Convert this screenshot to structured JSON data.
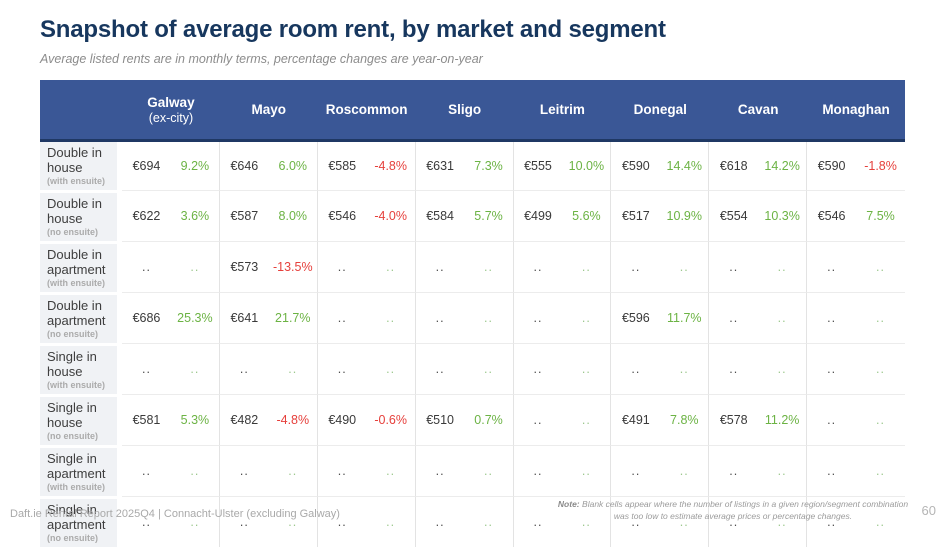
{
  "page": {
    "title": "Snapshot of average room rent, by market and segment",
    "subtitle": "Average listed rents are in monthly terms, percentage changes are year-on-year",
    "footer_left": "Daft.ie Rental Report 2025Q4 | Connacht-Ulster (excluding Galway)",
    "note_label": "Note:",
    "note_text": "Blank cells appear where the number of listings in a given region/segment combination was too low to estimate average prices or percentage changes.",
    "page_number": "60"
  },
  "colors": {
    "title": "#17375E",
    "header_bg": "#3A5796",
    "header_underline": "#1F3864",
    "positive": "#6CB344",
    "negative": "#E6403C",
    "blank_pct": "#9CC88D",
    "blank_val": "#4D4D4D"
  },
  "table": {
    "markets": [
      {
        "name": "Galway",
        "sub": "(ex-city)"
      },
      {
        "name": "Mayo",
        "sub": ""
      },
      {
        "name": "Roscommon",
        "sub": ""
      },
      {
        "name": "Sligo",
        "sub": ""
      },
      {
        "name": "Leitrim",
        "sub": ""
      },
      {
        "name": "Donegal",
        "sub": ""
      },
      {
        "name": "Cavan",
        "sub": ""
      },
      {
        "name": "Monaghan",
        "sub": ""
      }
    ],
    "rows": [
      {
        "label": "Double in house",
        "sublabel": "(with ensuite)",
        "cells": [
          {
            "rent": "€694",
            "change": "9.2%"
          },
          {
            "rent": "€646",
            "change": "6.0%"
          },
          {
            "rent": "€585",
            "change": "-4.8%"
          },
          {
            "rent": "€631",
            "change": "7.3%"
          },
          {
            "rent": "€555",
            "change": "10.0%"
          },
          {
            "rent": "€590",
            "change": "14.4%"
          },
          {
            "rent": "€618",
            "change": "14.2%"
          },
          {
            "rent": "€590",
            "change": "-1.8%"
          }
        ]
      },
      {
        "label": "Double in house",
        "sublabel": "(no ensuite)",
        "cells": [
          {
            "rent": "€622",
            "change": "3.6%"
          },
          {
            "rent": "€587",
            "change": "8.0%"
          },
          {
            "rent": "€546",
            "change": "-4.0%"
          },
          {
            "rent": "€584",
            "change": "5.7%"
          },
          {
            "rent": "€499",
            "change": "5.6%"
          },
          {
            "rent": "€517",
            "change": "10.9%"
          },
          {
            "rent": "€554",
            "change": "10.3%"
          },
          {
            "rent": "€546",
            "change": "7.5%"
          }
        ]
      },
      {
        "label": "Double in apartment",
        "sublabel": "(with ensuite)",
        "cells": [
          {
            "rent": "..",
            "change": ".."
          },
          {
            "rent": "€573",
            "change": "-13.5%"
          },
          {
            "rent": "..",
            "change": ".."
          },
          {
            "rent": "..",
            "change": ".."
          },
          {
            "rent": "..",
            "change": ".."
          },
          {
            "rent": "..",
            "change": ".."
          },
          {
            "rent": "..",
            "change": ".."
          },
          {
            "rent": "..",
            "change": ".."
          }
        ]
      },
      {
        "label": "Double in apartment",
        "sublabel": "(no ensuite)",
        "cells": [
          {
            "rent": "€686",
            "change": "25.3%"
          },
          {
            "rent": "€641",
            "change": "21.7%"
          },
          {
            "rent": "..",
            "change": ".."
          },
          {
            "rent": "..",
            "change": ".."
          },
          {
            "rent": "..",
            "change": ".."
          },
          {
            "rent": "€596",
            "change": "11.7%"
          },
          {
            "rent": "..",
            "change": ".."
          },
          {
            "rent": "..",
            "change": ".."
          }
        ]
      },
      {
        "label": "Single in house",
        "sublabel": "(with ensuite)",
        "cells": [
          {
            "rent": "..",
            "change": ".."
          },
          {
            "rent": "..",
            "change": ".."
          },
          {
            "rent": "..",
            "change": ".."
          },
          {
            "rent": "..",
            "change": ".."
          },
          {
            "rent": "..",
            "change": ".."
          },
          {
            "rent": "..",
            "change": ".."
          },
          {
            "rent": "..",
            "change": ".."
          },
          {
            "rent": "..",
            "change": ".."
          }
        ]
      },
      {
        "label": "Single in house",
        "sublabel": "(no ensuite)",
        "cells": [
          {
            "rent": "€581",
            "change": "5.3%"
          },
          {
            "rent": "€482",
            "change": "-4.8%"
          },
          {
            "rent": "€490",
            "change": "-0.6%"
          },
          {
            "rent": "€510",
            "change": "0.7%"
          },
          {
            "rent": "..",
            "change": ".."
          },
          {
            "rent": "€491",
            "change": "7.8%"
          },
          {
            "rent": "€578",
            "change": "11.2%"
          },
          {
            "rent": "..",
            "change": ".."
          }
        ]
      },
      {
        "label": "Single in apartment",
        "sublabel": "(with ensuite)",
        "cells": [
          {
            "rent": "..",
            "change": ".."
          },
          {
            "rent": "..",
            "change": ".."
          },
          {
            "rent": "..",
            "change": ".."
          },
          {
            "rent": "..",
            "change": ".."
          },
          {
            "rent": "..",
            "change": ".."
          },
          {
            "rent": "..",
            "change": ".."
          },
          {
            "rent": "..",
            "change": ".."
          },
          {
            "rent": "..",
            "change": ".."
          }
        ]
      },
      {
        "label": "Single in apartment",
        "sublabel": "(no ensuite)",
        "cells": [
          {
            "rent": "..",
            "change": ".."
          },
          {
            "rent": "..",
            "change": ".."
          },
          {
            "rent": "..",
            "change": ".."
          },
          {
            "rent": "..",
            "change": ".."
          },
          {
            "rent": "..",
            "change": ".."
          },
          {
            "rent": "..",
            "change": ".."
          },
          {
            "rent": "..",
            "change": ".."
          },
          {
            "rent": "..",
            "change": ".."
          }
        ]
      }
    ]
  }
}
